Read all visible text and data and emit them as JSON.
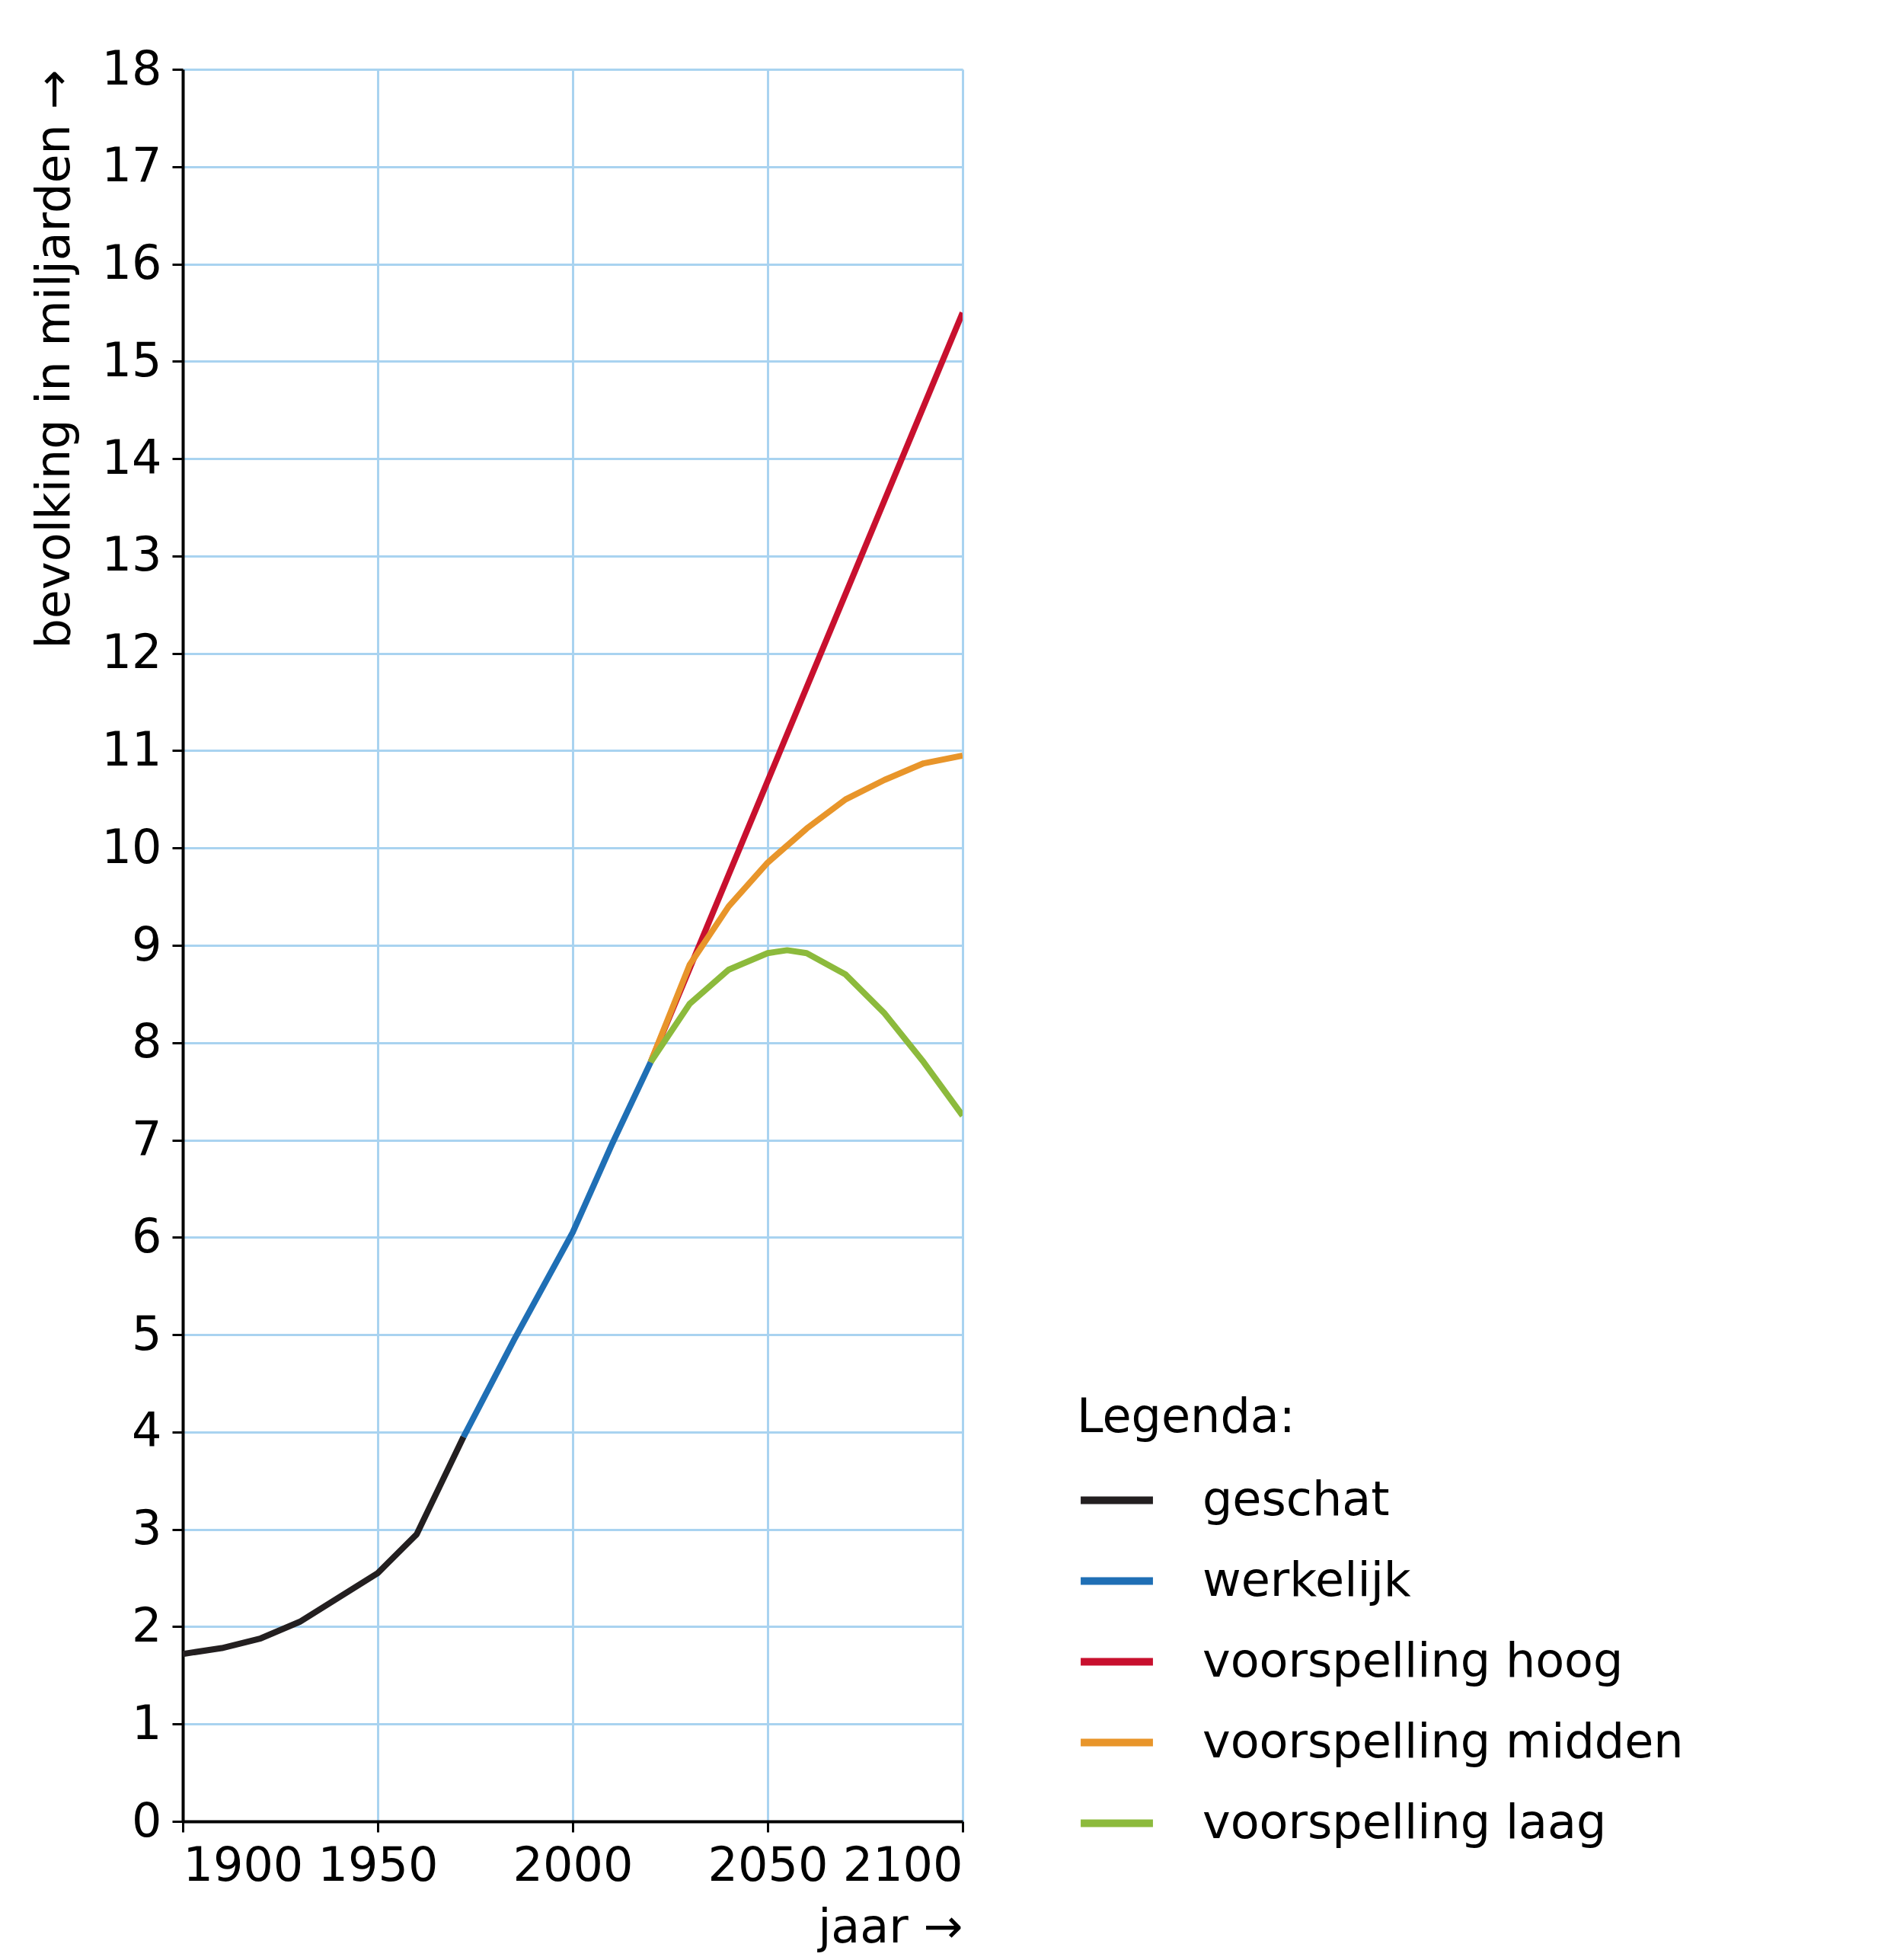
{
  "chart_data": {
    "type": "line",
    "xlabel": "jaar →",
    "ylabel": "bevolking in miljarden →",
    "legend_title": "Legenda:",
    "legend": "bottom right",
    "grid": true,
    "line_style": "solid",
    "xlim": [
      1900,
      2100
    ],
    "xticks": [
      1900,
      1950,
      2000,
      2050,
      2100
    ],
    "ylim": [
      0,
      18
    ],
    "yticks": [
      0,
      1,
      2,
      3,
      4,
      5,
      6,
      7,
      8,
      9,
      10,
      11,
      12,
      13,
      14,
      15,
      16,
      17,
      18
    ],
    "series": [
      {
        "name": "geschat",
        "color": "#231f20",
        "x": [
          1900,
          1910,
          1920,
          1930,
          1940,
          1950,
          1960,
          1972
        ],
        "values": [
          1.72,
          1.78,
          1.88,
          2.05,
          2.3,
          2.55,
          2.95,
          3.95
        ]
      },
      {
        "name": "werkelijk",
        "color": "#1f6fb5",
        "x": [
          1972,
          1985,
          2000,
          2010,
          2020
        ],
        "values": [
          3.95,
          4.95,
          6.05,
          6.95,
          7.8
        ]
      },
      {
        "name": "voorspelling hoog",
        "color": "#c8102e",
        "x": [
          2020,
          2100
        ],
        "values": [
          7.8,
          15.5
        ]
      },
      {
        "name": "voorspelling midden",
        "color": "#e8952a",
        "x": [
          2020,
          2030,
          2040,
          2050,
          2060,
          2070,
          2080,
          2090,
          2100
        ],
        "values": [
          7.8,
          8.8,
          9.4,
          9.85,
          10.2,
          10.5,
          10.7,
          10.87,
          10.95
        ]
      },
      {
        "name": "voorspelling laag",
        "color": "#8cba3c",
        "x": [
          2020,
          2030,
          2040,
          2050,
          2055,
          2060,
          2070,
          2080,
          2090,
          2100
        ],
        "values": [
          7.8,
          8.4,
          8.75,
          8.92,
          8.95,
          8.92,
          8.7,
          8.3,
          7.8,
          7.25
        ]
      }
    ]
  }
}
